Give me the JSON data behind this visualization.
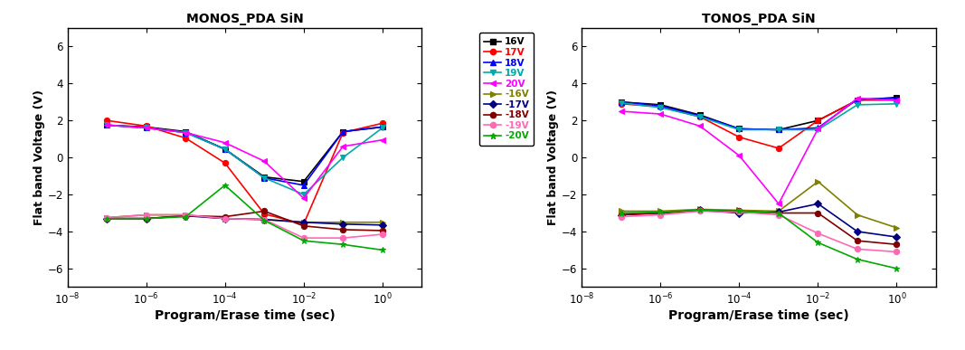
{
  "left_title": "MONOS_PDA SiN",
  "right_title": "TONOS_PDA SiN",
  "xlabel": "Program/Erase time (sec)",
  "ylabel": "Flat band Voltage (V)",
  "ylim": [
    -7,
    7
  ],
  "x_values": [
    1e-07,
    1e-06,
    1e-05,
    0.0001,
    0.001,
    0.01,
    0.1,
    1.0
  ],
  "left_series": [
    {
      "label": "16V",
      "color": "#000000",
      "marker": "s",
      "data": [
        1.75,
        1.65,
        1.4,
        0.45,
        -1.05,
        -1.3,
        1.4,
        1.65
      ]
    },
    {
      "label": "17V",
      "color": "#ff0000",
      "marker": "o",
      "data": [
        2.0,
        1.7,
        1.05,
        -0.3,
        -3.05,
        -3.6,
        1.35,
        1.85
      ]
    },
    {
      "label": "18V",
      "color": "#0000ff",
      "marker": "^",
      "data": [
        1.75,
        1.6,
        1.35,
        0.45,
        -1.1,
        -1.5,
        1.4,
        1.65
      ]
    },
    {
      "label": "19V",
      "color": "#00aaaa",
      "marker": "v",
      "data": [
        1.75,
        1.6,
        1.35,
        0.45,
        -1.1,
        -2.0,
        0.0,
        1.6
      ]
    },
    {
      "label": "20V",
      "color": "#ff00ff",
      "marker": "<",
      "data": [
        1.75,
        1.6,
        1.35,
        0.8,
        -0.2,
        -2.2,
        0.6,
        0.95
      ]
    },
    {
      "label": "-16V",
      "color": "#808000",
      "marker": ">",
      "data": [
        -3.25,
        -3.1,
        -3.1,
        -3.3,
        -3.35,
        -3.5,
        -3.5,
        -3.5
      ]
    },
    {
      "label": "-17V",
      "color": "#000080",
      "marker": "D",
      "data": [
        -3.3,
        -3.3,
        -3.15,
        -3.3,
        -3.35,
        -3.5,
        -3.6,
        -3.65
      ]
    },
    {
      "label": "-18V",
      "color": "#800000",
      "marker": "o",
      "data": [
        -3.3,
        -3.3,
        -3.15,
        -3.2,
        -2.9,
        -3.7,
        -3.9,
        -3.95
      ]
    },
    {
      "label": "-19V",
      "color": "#ff69b4",
      "marker": "o",
      "data": [
        -3.25,
        -3.1,
        -3.1,
        -3.3,
        -3.35,
        -4.35,
        -4.35,
        -4.15
      ]
    },
    {
      "label": "-20V",
      "color": "#00aa00",
      "marker": "*",
      "data": [
        -3.3,
        -3.3,
        -3.2,
        -1.5,
        -3.4,
        -4.5,
        -4.7,
        -5.0
      ]
    }
  ],
  "right_series": [
    {
      "label": "16V",
      "color": "#000000",
      "marker": "s",
      "data": [
        3.0,
        2.85,
        2.3,
        1.55,
        1.5,
        2.0,
        3.1,
        3.25
      ]
    },
    {
      "label": "17V",
      "color": "#ff0000",
      "marker": "o",
      "data": [
        2.9,
        2.75,
        2.2,
        1.1,
        0.5,
        2.0,
        3.1,
        3.1
      ]
    },
    {
      "label": "18V",
      "color": "#0000ff",
      "marker": "^",
      "data": [
        3.0,
        2.8,
        2.25,
        1.55,
        1.5,
        1.6,
        3.15,
        3.2
      ]
    },
    {
      "label": "19V",
      "color": "#00aaaa",
      "marker": "v",
      "data": [
        2.95,
        2.7,
        2.2,
        1.5,
        1.5,
        1.5,
        2.85,
        2.9
      ]
    },
    {
      "label": "20V",
      "color": "#ff00ff",
      "marker": "<",
      "data": [
        2.5,
        2.35,
        1.7,
        0.1,
        -2.5,
        1.55,
        3.2,
        3.1
      ]
    },
    {
      "label": "-16V",
      "color": "#808000",
      "marker": ">",
      "data": [
        -2.9,
        -2.9,
        -2.8,
        -2.85,
        -2.9,
        -1.3,
        -3.1,
        -3.8
      ]
    },
    {
      "label": "-17V",
      "color": "#000080",
      "marker": "D",
      "data": [
        -3.1,
        -3.0,
        -2.85,
        -3.0,
        -2.95,
        -2.5,
        -4.0,
        -4.3
      ]
    },
    {
      "label": "-18V",
      "color": "#800000",
      "marker": "o",
      "data": [
        -3.1,
        -3.0,
        -2.85,
        -2.9,
        -3.0,
        -3.0,
        -4.5,
        -4.7
      ]
    },
    {
      "label": "-19V",
      "color": "#ff69b4",
      "marker": "o",
      "data": [
        -3.2,
        -3.1,
        -2.9,
        -2.95,
        -3.1,
        -4.1,
        -4.95,
        -5.1
      ]
    },
    {
      "label": "-20V",
      "color": "#00aa00",
      "marker": "*",
      "data": [
        -3.0,
        -2.95,
        -2.85,
        -2.9,
        -3.0,
        -4.6,
        -5.5,
        -6.0
      ]
    }
  ],
  "legend_text_colors": [
    "#000000",
    "#ff0000",
    "#0000ff",
    "#00aaaa",
    "#ff00ff",
    "#808000",
    "#000080",
    "#800000",
    "#ff69b4",
    "#00aa00"
  ]
}
